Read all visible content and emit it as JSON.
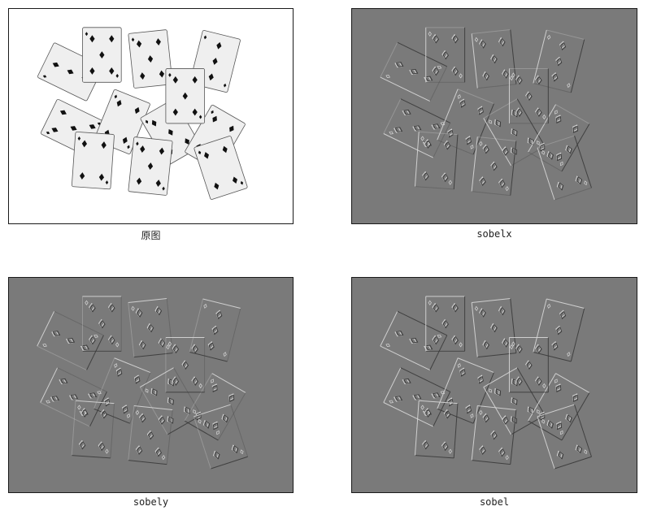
{
  "panels": [
    {
      "id": "original",
      "caption": "原图",
      "mode": "original",
      "background": "#ffffff"
    },
    {
      "id": "sobelx",
      "caption": "sobelx",
      "mode": "edge-x",
      "background": "#7a7a7a"
    },
    {
      "id": "sobely",
      "caption": "sobely",
      "mode": "edge-y",
      "background": "#7a7a7a"
    },
    {
      "id": "sobel",
      "caption": "sobel",
      "mode": "edge-xy",
      "background": "#7a7a7a"
    }
  ],
  "card_suit_icon": "diamond-icon",
  "colors": {
    "card_fill": "#efefef",
    "suit": "#111111",
    "edge_light": "#d8d8d8",
    "edge_dark": "#3a3a3a"
  }
}
